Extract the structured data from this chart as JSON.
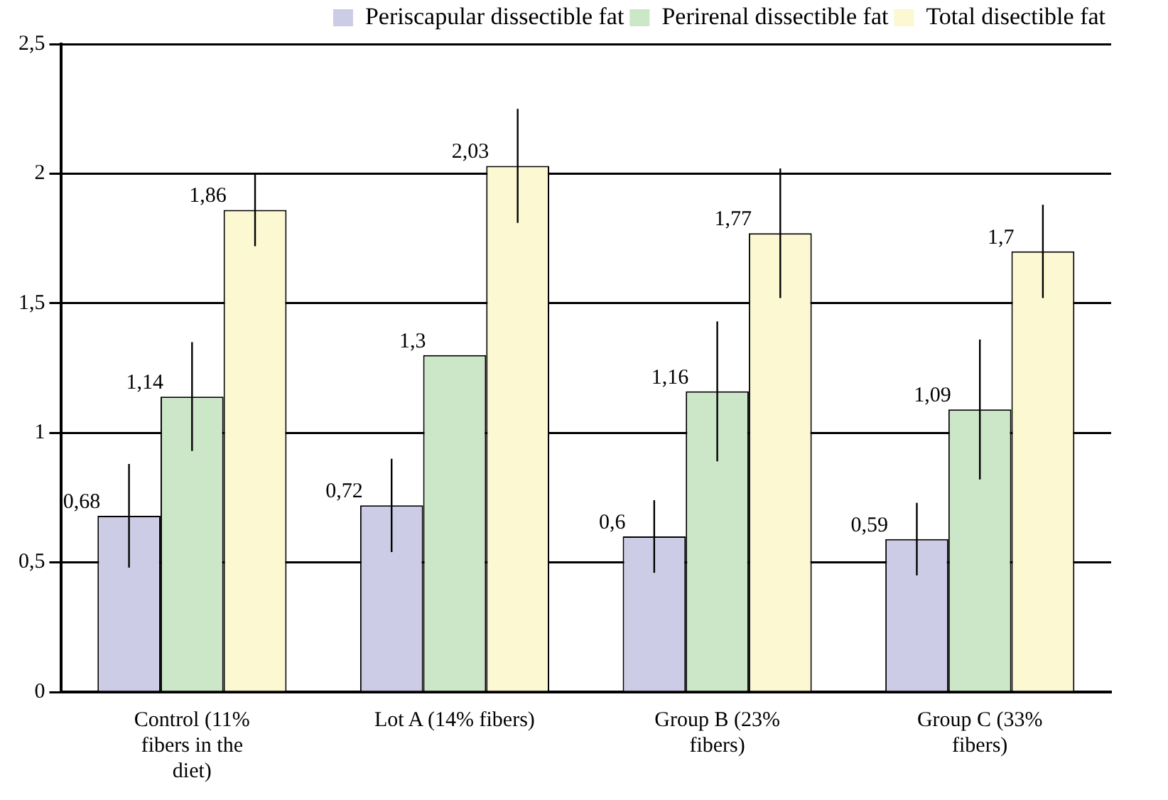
{
  "chart_data": {
    "type": "bar",
    "categories": [
      "Control (11% fibers in the diet)",
      "Lot A (14% fibers)",
      "Group B (23% fibers)",
      "Group C (33% fibers)"
    ],
    "series": [
      {
        "name": "Periscapular dissectible fat",
        "color": "#cccce6",
        "values": [
          0.68,
          0.72,
          0.6,
          0.59
        ],
        "value_labels": [
          "0,68",
          "0,72",
          "0,6",
          "0,59"
        ],
        "errors": [
          0.2,
          0.18,
          0.14,
          0.14
        ]
      },
      {
        "name": "Perirenal dissectible fat",
        "color": "#cce6c8",
        "values": [
          1.14,
          1.3,
          1.16,
          1.09
        ],
        "value_labels": [
          "1,14",
          "1,3",
          "1,16",
          "1,09"
        ],
        "errors": [
          0.21,
          null,
          0.27,
          0.27
        ]
      },
      {
        "name": "Total disectible fat",
        "color": "#fbf8d2",
        "values": [
          1.86,
          2.03,
          1.77,
          1.7
        ],
        "value_labels": [
          "1,86",
          "2,03",
          "1,77",
          "1,7"
        ],
        "errors": [
          0.14,
          0.22,
          0.25,
          0.18
        ]
      }
    ],
    "ylim": [
      0,
      2.5
    ],
    "yticks": [
      0,
      {
        "value": 0.5,
        "label": "0,5"
      },
      1,
      {
        "value": 1.5,
        "label": "1,5"
      },
      2,
      {
        "value": 2.5,
        "label": "2,5"
      }
    ],
    "grid": "y",
    "legend": "top right"
  }
}
